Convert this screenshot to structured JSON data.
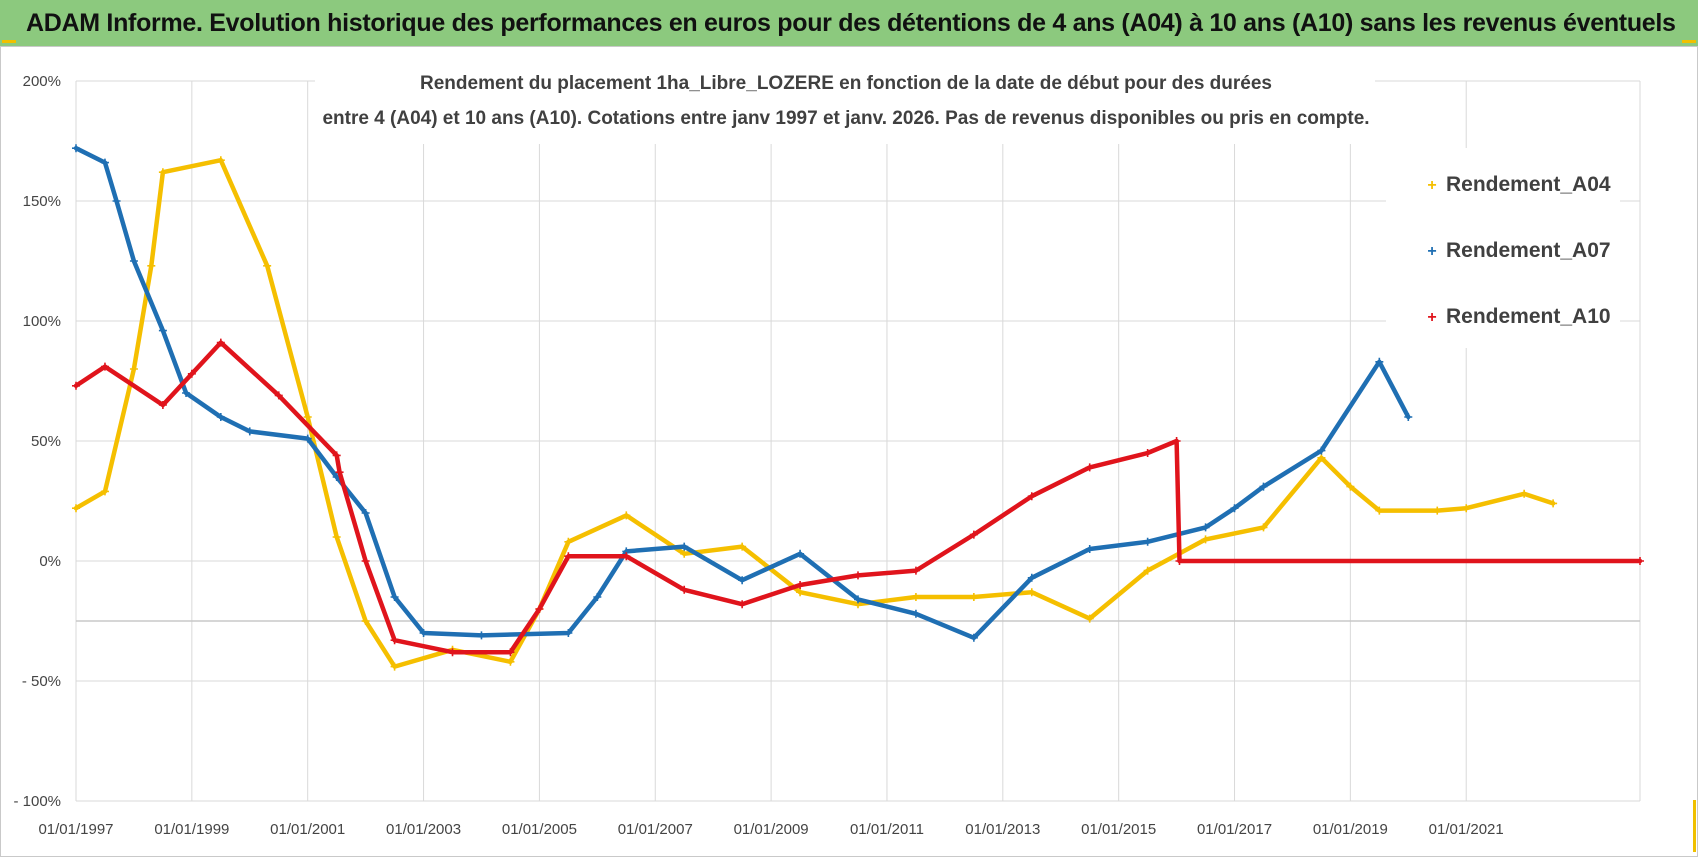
{
  "banner": {
    "title": "ADAM Informe. Evolution historique des performances en euros pour des détentions de 4 ans (A04) à 10 ans (A10) sans les revenus éventuels"
  },
  "colors": {
    "banner_bg": "#8cc97e",
    "a04": "#f5bf00",
    "a07": "#1f6fb3",
    "a10": "#e0141c",
    "grid": "#d9d9d9"
  },
  "chart_data": {
    "type": "line",
    "title_line1": "Rendement du placement 1ha_Libre_LOZERE en fonction de la date de début pour des durées",
    "title_line2": "entre 4 (A04) et 10 ans (A10).  Cotations entre janv 1997 et janv. 2026. Pas de revenus disponibles ou pris en compte.",
    "xlabel": "",
    "ylabel": "",
    "xlim": [
      1997.0,
      2024.0
    ],
    "ylim": [
      -100,
      200
    ],
    "y_ticks": [
      {
        "value": 200,
        "label": "200%"
      },
      {
        "value": 150,
        "label": "150%"
      },
      {
        "value": 100,
        "label": "100%"
      },
      {
        "value": 50,
        "label": "50%"
      },
      {
        "value": 0,
        "label": "0%"
      },
      {
        "value": -50,
        "label": "- 50%"
      },
      {
        "value": -100,
        "label": "- 100%"
      }
    ],
    "x_ticks": [
      {
        "value": 1997,
        "label": "01/01/1997"
      },
      {
        "value": 1999,
        "label": "01/01/1999"
      },
      {
        "value": 2001,
        "label": "01/01/2001"
      },
      {
        "value": 2003,
        "label": "01/01/2003"
      },
      {
        "value": 2005,
        "label": "01/01/2005"
      },
      {
        "value": 2007,
        "label": "01/01/2007"
      },
      {
        "value": 2009,
        "label": "01/01/2009"
      },
      {
        "value": 2011,
        "label": "01/01/2011"
      },
      {
        "value": 2013,
        "label": "01/01/2013"
      },
      {
        "value": 2015,
        "label": "01/01/2015"
      },
      {
        "value": 2017,
        "label": "01/01/2017"
      },
      {
        "value": 2019,
        "label": "01/01/2019"
      },
      {
        "value": 2021,
        "label": "01/01/2021"
      }
    ],
    "legend_position": "top-right",
    "series": [
      {
        "name": "Rendement_A04",
        "key": "a04",
        "points": [
          [
            1997.0,
            22
          ],
          [
            1997.5,
            29
          ],
          [
            1998.0,
            80
          ],
          [
            1998.3,
            123
          ],
          [
            1998.5,
            162
          ],
          [
            1999.5,
            167
          ],
          [
            2000.3,
            123
          ],
          [
            2001.0,
            60
          ],
          [
            2001.5,
            10
          ],
          [
            2002.0,
            -25
          ],
          [
            2002.5,
            -44
          ],
          [
            2003.5,
            -37
          ],
          [
            2004.5,
            -42
          ],
          [
            2005.0,
            -20
          ],
          [
            2005.5,
            8
          ],
          [
            2006.5,
            19
          ],
          [
            2007.5,
            3
          ],
          [
            2008.5,
            6
          ],
          [
            2009.5,
            -13
          ],
          [
            2010.5,
            -18
          ],
          [
            2011.5,
            -15
          ],
          [
            2012.5,
            -15
          ],
          [
            2013.5,
            -13
          ],
          [
            2014.5,
            -24
          ],
          [
            2015.5,
            -4
          ],
          [
            2016.5,
            9
          ],
          [
            2017.5,
            14
          ],
          [
            2018.5,
            43
          ],
          [
            2019.0,
            31
          ],
          [
            2019.5,
            21
          ],
          [
            2020.5,
            21
          ],
          [
            2021.0,
            22
          ],
          [
            2022.0,
            28
          ],
          [
            2022.5,
            24
          ]
        ]
      },
      {
        "name": "Rendement_A07",
        "key": "a07",
        "points": [
          [
            1997.0,
            172
          ],
          [
            1997.5,
            166
          ],
          [
            1997.7,
            150
          ],
          [
            1998.0,
            125
          ],
          [
            1998.5,
            96
          ],
          [
            1998.9,
            70
          ],
          [
            1999.5,
            60
          ],
          [
            2000.0,
            54
          ],
          [
            2001.0,
            51
          ],
          [
            2001.5,
            35
          ],
          [
            2002.0,
            20
          ],
          [
            2002.5,
            -15
          ],
          [
            2003.0,
            -30
          ],
          [
            2004.0,
            -31
          ],
          [
            2005.5,
            -30
          ],
          [
            2006.0,
            -15
          ],
          [
            2006.5,
            4
          ],
          [
            2007.5,
            6
          ],
          [
            2008.5,
            -8
          ],
          [
            2009.5,
            3
          ],
          [
            2010.5,
            -16
          ],
          [
            2011.5,
            -22
          ],
          [
            2012.5,
            -32
          ],
          [
            2013.5,
            -7
          ],
          [
            2014.5,
            5
          ],
          [
            2015.5,
            8
          ],
          [
            2016.5,
            14
          ],
          [
            2017.0,
            22
          ],
          [
            2017.5,
            31
          ],
          [
            2018.5,
            46
          ],
          [
            2019.5,
            83
          ],
          [
            2020.0,
            60
          ]
        ]
      },
      {
        "name": "Rendement_A10",
        "key": "a10",
        "points": [
          [
            1997.0,
            73
          ],
          [
            1997.5,
            81
          ],
          [
            1998.5,
            65
          ],
          [
            1999.0,
            78
          ],
          [
            1999.5,
            91
          ],
          [
            2000.5,
            69
          ],
          [
            2001.5,
            44
          ],
          [
            2001.55,
            37
          ],
          [
            2002.0,
            0
          ],
          [
            2002.5,
            -33
          ],
          [
            2003.5,
            -38
          ],
          [
            2004.5,
            -38
          ],
          [
            2005.0,
            -20
          ],
          [
            2005.5,
            2
          ],
          [
            2006.5,
            2
          ],
          [
            2007.5,
            -12
          ],
          [
            2008.5,
            -18
          ],
          [
            2009.5,
            -10
          ],
          [
            2010.5,
            -6
          ],
          [
            2011.5,
            -4
          ],
          [
            2012.5,
            11
          ],
          [
            2013.5,
            27
          ],
          [
            2014.5,
            39
          ],
          [
            2015.5,
            45
          ],
          [
            2016.0,
            50
          ],
          [
            2016.05,
            0
          ],
          [
            2024.0,
            0
          ]
        ]
      }
    ]
  }
}
